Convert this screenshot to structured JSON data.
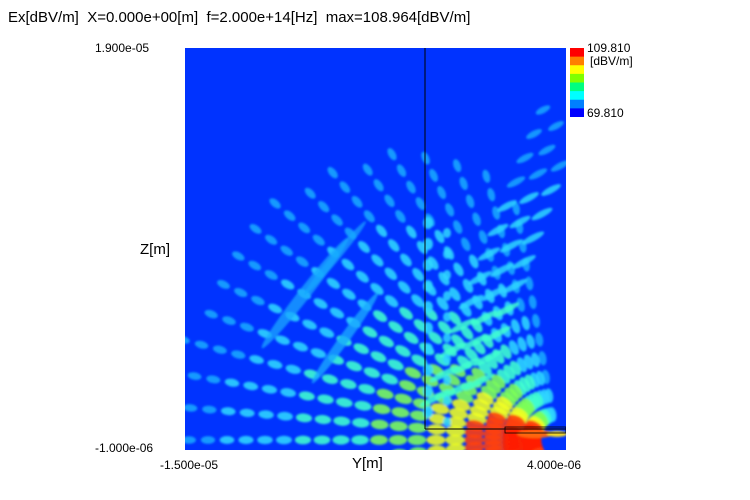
{
  "header": {
    "title": "Ex[dBV/m]  X=0.000e+00[m]  f=2.000e+14[Hz]  max=108.964[dBV/m]"
  },
  "chart_data": {
    "type": "heatmap",
    "quantity": "Ex",
    "unit": "[dBV/m]",
    "plane": "X=0.000e+00[m]",
    "frequency": "f=2.000e+14[Hz]",
    "max": "max=108.964[dBV/m]",
    "xlabel": "Y[m]",
    "ylabel": "Z[m]",
    "xlim_labels": [
      "-1.500e-05",
      "4.000e-06"
    ],
    "ylim_labels": [
      "-1.000e-06",
      "1.900e-05"
    ],
    "xlim": [
      -1.5e-05,
      4e-06
    ],
    "ylim": [
      -1e-06,
      1.9e-05
    ],
    "colorbar": {
      "max_label": "109.810",
      "min_label": "69.810",
      "unit_label": "[dBV/m]",
      "range": [
        69.81,
        109.81
      ],
      "colors": [
        "#0000ff",
        "#0080ff",
        "#00ffff",
        "#00ff80",
        "#80ff00",
        "#ffff00",
        "#ff8000",
        "#ff0000"
      ]
    },
    "background_color": "#0033ff",
    "grid": false
  }
}
